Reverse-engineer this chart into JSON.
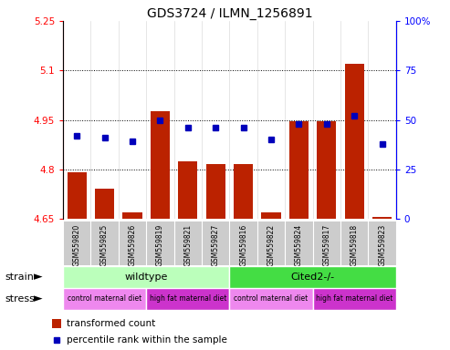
{
  "title": "GDS3724 / ILMN_1256891",
  "samples": [
    "GSM559820",
    "GSM559825",
    "GSM559826",
    "GSM559819",
    "GSM559821",
    "GSM559827",
    "GSM559816",
    "GSM559822",
    "GSM559824",
    "GSM559817",
    "GSM559818",
    "GSM559823"
  ],
  "transformed_count": [
    4.79,
    4.74,
    4.67,
    4.975,
    4.825,
    4.815,
    4.815,
    4.67,
    4.945,
    4.945,
    5.12,
    4.655
  ],
  "percentile_rank": [
    42,
    41,
    39,
    50,
    46,
    46,
    46,
    40,
    48,
    48,
    52,
    38
  ],
  "ylim_left": [
    4.65,
    5.25
  ],
  "ylim_right": [
    0,
    100
  ],
  "yticks_left": [
    4.65,
    4.8,
    4.95,
    5.1,
    5.25
  ],
  "yticks_right": [
    0,
    25,
    50,
    75,
    100
  ],
  "ytick_labels_left": [
    "4.65",
    "4.8",
    "4.95",
    "5.1",
    "5.25"
  ],
  "ytick_labels_right": [
    "0",
    "25",
    "50",
    "75",
    "100%"
  ],
  "bar_color": "#bb2200",
  "dot_color": "#0000bb",
  "strain_wildtype_indices": [
    0,
    1,
    2,
    3,
    4,
    5
  ],
  "strain_cited_indices": [
    6,
    7,
    8,
    9,
    10,
    11
  ],
  "stress_control1_indices": [
    0,
    1,
    2
  ],
  "stress_highfat1_indices": [
    3,
    4,
    5
  ],
  "stress_control2_indices": [
    6,
    7,
    8
  ],
  "stress_highfat2_indices": [
    9,
    10,
    11
  ],
  "strain_wildtype_label": "wildtype",
  "strain_cited_label": "Cited2-/-",
  "stress_control_label": "control maternal diet",
  "stress_highfat_label": "high fat maternal diet",
  "strain_label": "strain",
  "stress_label": "stress",
  "legend_bar_label": "transformed count",
  "legend_dot_label": "percentile rank within the sample",
  "wildtype_color": "#bbffbb",
  "cited_color": "#44dd44",
  "stress_light_color": "#ee88ee",
  "stress_dark_color": "#cc33cc",
  "dotted_lines": [
    4.8,
    4.95,
    5.1
  ],
  "bar_width": 0.7,
  "sample_col_bg": "#cccccc"
}
